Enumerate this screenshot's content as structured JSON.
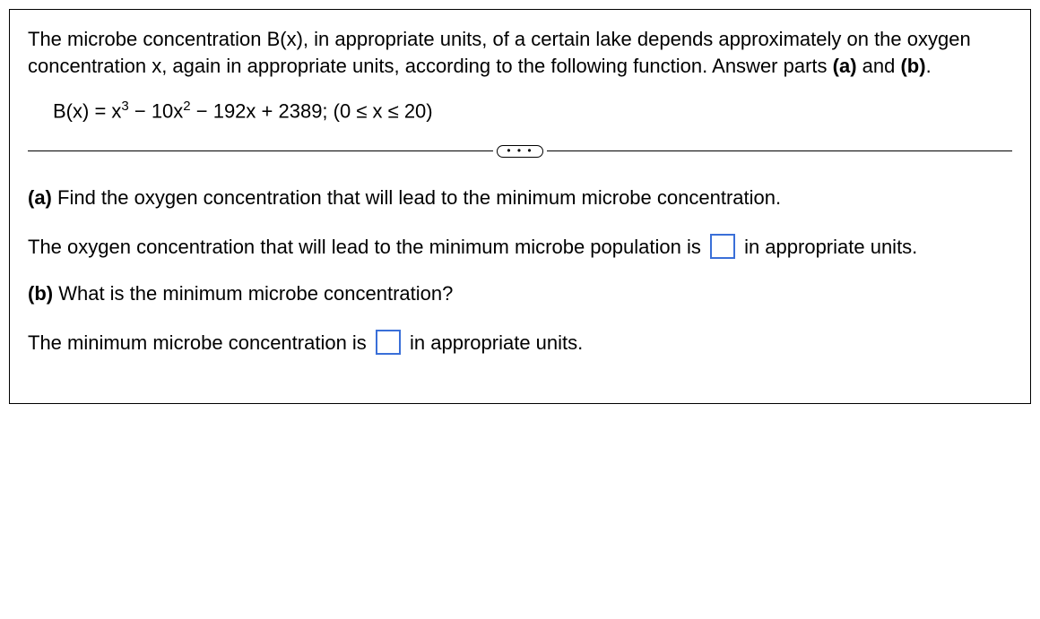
{
  "problem": {
    "intro_html": "The microbe concentration B(x), in appropriate units, of a certain lake depends approximately on the oxygen concentration x, again in appropriate units, according to the following function. Answer parts <b>(a)</b> and <b>(b)</b>.",
    "equation_prefix": "B(x) = x",
    "equation_sup1": "3",
    "equation_mid1": " − 10x",
    "equation_sup2": "2",
    "equation_rest": " − 192x + 2389; (0 ≤ x ≤ 20)"
  },
  "divider": {
    "dots": "• • •"
  },
  "part_a": {
    "heading_html": "<b>(a)</b> Find the oxygen concentration that will lead to the minimum microbe concentration.",
    "answer_before": "The oxygen concentration that will lead to the minimum microbe population is ",
    "answer_after": " in appropriate units."
  },
  "part_b": {
    "heading_html": "<b>(b)</b> What is the minimum microbe concentration?",
    "answer_before": "The minimum microbe concentration is ",
    "answer_after": " in appropriate units."
  },
  "styles": {
    "border_color": "#000000",
    "answer_box_color": "#3a6fd8",
    "text_color": "#000000",
    "font_size_body": 22
  }
}
